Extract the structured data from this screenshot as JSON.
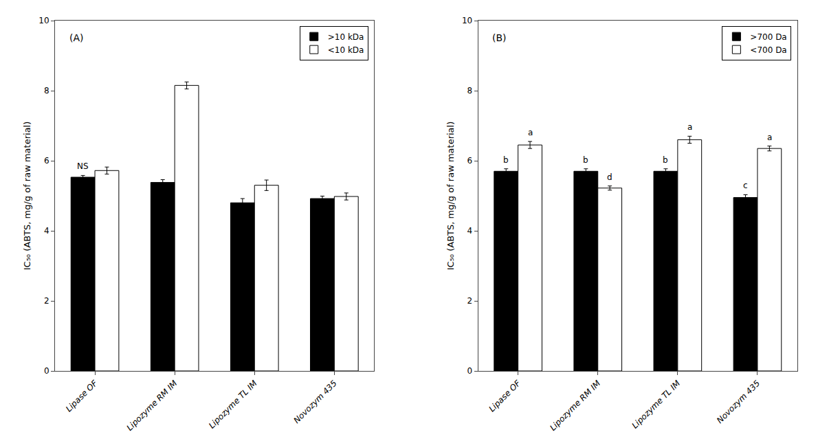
{
  "chart_data": [
    {
      "type": "bar",
      "title": "(A)",
      "categories": [
        "Lipase OF",
        "Lipozyme RM IM",
        "Lipozyme TL IM",
        "Novozym 435"
      ],
      "ylabel": "IC₅₀ (ABTS, mg/g of raw material)",
      "series": [
        {
          "name": ">10 kDa",
          "color": "#000000",
          "values": [
            5.53,
            5.38,
            4.8,
            4.92
          ],
          "errors": [
            0.05,
            0.08,
            0.12,
            0.07
          ],
          "annotations": [
            "NS",
            null,
            null,
            null
          ]
        },
        {
          "name": "<10 kDa",
          "color": "#ffffff",
          "values": [
            5.72,
            8.15,
            5.3,
            4.98
          ],
          "errors": [
            0.1,
            0.1,
            0.15,
            0.1
          ]
        }
      ],
      "ylim": [
        0,
        10
      ],
      "yticks": [
        0,
        2,
        4,
        6,
        8,
        10
      ],
      "grid": false,
      "legend": "upper right"
    },
    {
      "type": "bar",
      "title": "(B)",
      "categories": [
        "Lipase OF",
        "Lipozyme RM IM",
        "Lipozyme TL IM",
        "Novozym 435"
      ],
      "ylabel": "IC₅₀ (ABTS, mg/g of raw material)",
      "series": [
        {
          "name": ">700 Da",
          "color": "#000000",
          "values": [
            5.7,
            5.7,
            5.7,
            4.95
          ],
          "errors": [
            0.07,
            0.07,
            0.07,
            0.08
          ],
          "annotations": [
            "b",
            "b",
            "b",
            "c"
          ]
        },
        {
          "name": "<700 Da",
          "color": "#ffffff",
          "values": [
            6.45,
            5.22,
            6.6,
            6.35
          ],
          "errors": [
            0.1,
            0.06,
            0.1,
            0.07
          ],
          "annotations": [
            "a",
            "d",
            "a",
            "a"
          ]
        }
      ],
      "ylim": [
        0,
        10
      ],
      "yticks": [
        0,
        2,
        4,
        6,
        8,
        10
      ],
      "grid": false,
      "legend": "upper right"
    }
  ]
}
